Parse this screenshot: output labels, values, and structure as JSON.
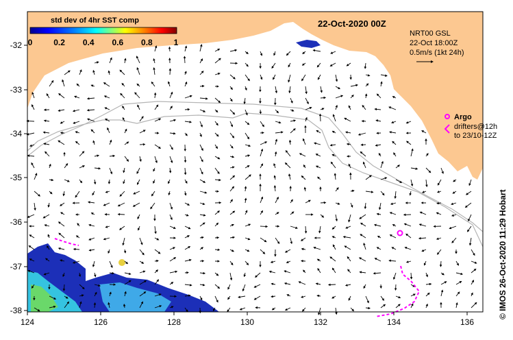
{
  "map": {
    "date_title": "22-Oct-2020 00Z",
    "colorbar": {
      "title": "std dev of 4hr SST comp",
      "ticks": [
        "0",
        "0.2",
        "0.4",
        "0.6",
        "0.8",
        "1"
      ],
      "colors": [
        "#00008f",
        "#0000ff",
        "#0080ff",
        "#00ffff",
        "#80ff80",
        "#ffff00",
        "#ff8000",
        "#ff0000",
        "#800000"
      ]
    },
    "legend": {
      "line1": "NRT00 GSL",
      "line2": "22-Oct 18:00Z",
      "line3": "0.5m/s (1kt 24h)"
    },
    "argo": {
      "title": "Argo",
      "line1": "drifters@12h",
      "line2": "to 23/10-12Z"
    },
    "credit": "© IMOS 26-Oct-2020 11:29 Hobart",
    "axes": {
      "lon_ticks": [
        "124",
        "126",
        "128",
        "130",
        "132",
        "134",
        "136"
      ],
      "lat_ticks": [
        "-32",
        "-33",
        "-34",
        "-35",
        "-36",
        "-37",
        "-38"
      ]
    },
    "colors": {
      "land": "#fcc891",
      "ocean": "#ffffff",
      "shelf_contour": "#b4b4b4",
      "drifter": "#ff00ff"
    }
  }
}
